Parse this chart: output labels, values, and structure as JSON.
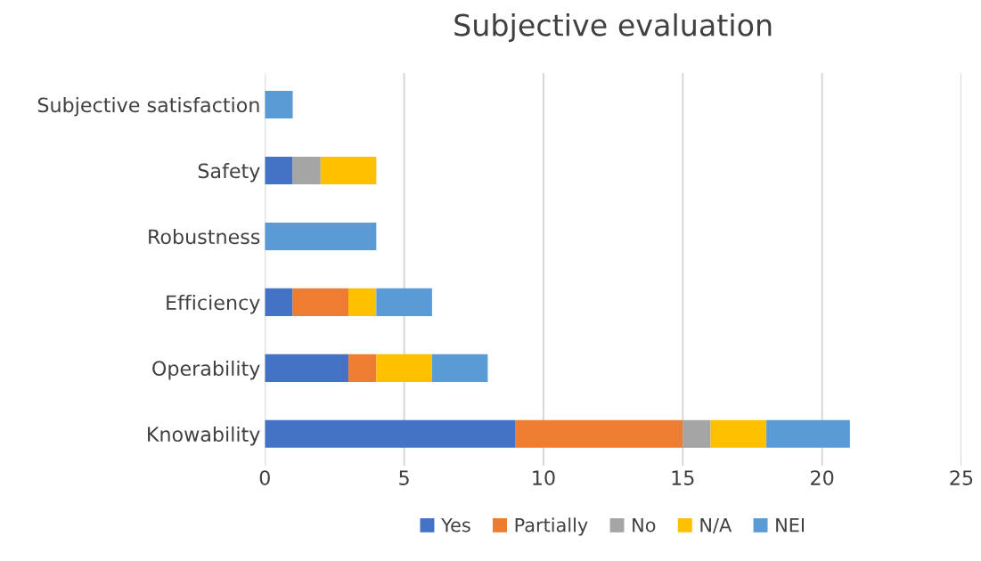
{
  "chart_data": {
    "type": "bar",
    "orientation": "horizontal",
    "stacked": true,
    "title": "Subjective evaluation",
    "categories": [
      "Subjective satisfaction",
      "Safety",
      "Robustness",
      "Efficiency",
      "Operability",
      "Knowability"
    ],
    "series": [
      {
        "name": "Yes",
        "color": "#4472c4",
        "values": [
          null,
          1,
          null,
          1,
          3,
          9
        ]
      },
      {
        "name": "Partially",
        "color": "#ed7d31",
        "values": [
          null,
          null,
          null,
          2,
          1,
          6
        ]
      },
      {
        "name": "No",
        "color": "#a5a5a5",
        "values": [
          null,
          1,
          null,
          null,
          null,
          1
        ]
      },
      {
        "name": "N/A",
        "color": "#ffc000",
        "values": [
          null,
          2,
          null,
          1,
          2,
          2
        ]
      },
      {
        "name": "NEI",
        "color": "#5b9bd5",
        "values": [
          1,
          null,
          4,
          2,
          2,
          3
        ]
      }
    ],
    "xlim": [
      0,
      25
    ],
    "xticks": [
      0,
      5,
      10,
      15,
      20,
      25
    ],
    "grid": "x",
    "legend": "bottom"
  }
}
